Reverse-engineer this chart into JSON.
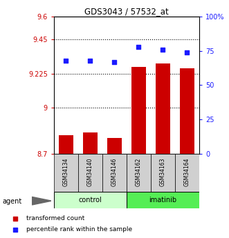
{
  "title": "GDS3043 / 57532_at",
  "samples": [
    "GSM34134",
    "GSM34140",
    "GSM34146",
    "GSM34162",
    "GSM34163",
    "GSM34164"
  ],
  "red_values": [
    8.82,
    8.84,
    8.8,
    9.27,
    9.29,
    9.26
  ],
  "blue_values": [
    68,
    68,
    67,
    78,
    76,
    74
  ],
  "left_ylim": [
    8.7,
    9.6
  ],
  "right_ylim": [
    0,
    100
  ],
  "left_yticks": [
    8.7,
    9.0,
    9.225,
    9.45,
    9.6
  ],
  "left_yticklabels": [
    "8.7",
    "9",
    "9.225",
    "9.45",
    "9.6"
  ],
  "right_yticks": [
    0,
    25,
    50,
    75,
    100
  ],
  "right_yticklabels": [
    "0",
    "25",
    "50",
    "75",
    "100%"
  ],
  "dotted_lines": [
    9.45,
    9.225,
    9.0
  ],
  "bar_color": "#cc0000",
  "dot_color": "#1a1aff",
  "control_color": "#ccffcc",
  "imatinib_color": "#55ee55",
  "bar_width": 0.6,
  "legend_red": "transformed count",
  "legend_blue": "percentile rank within the sample"
}
